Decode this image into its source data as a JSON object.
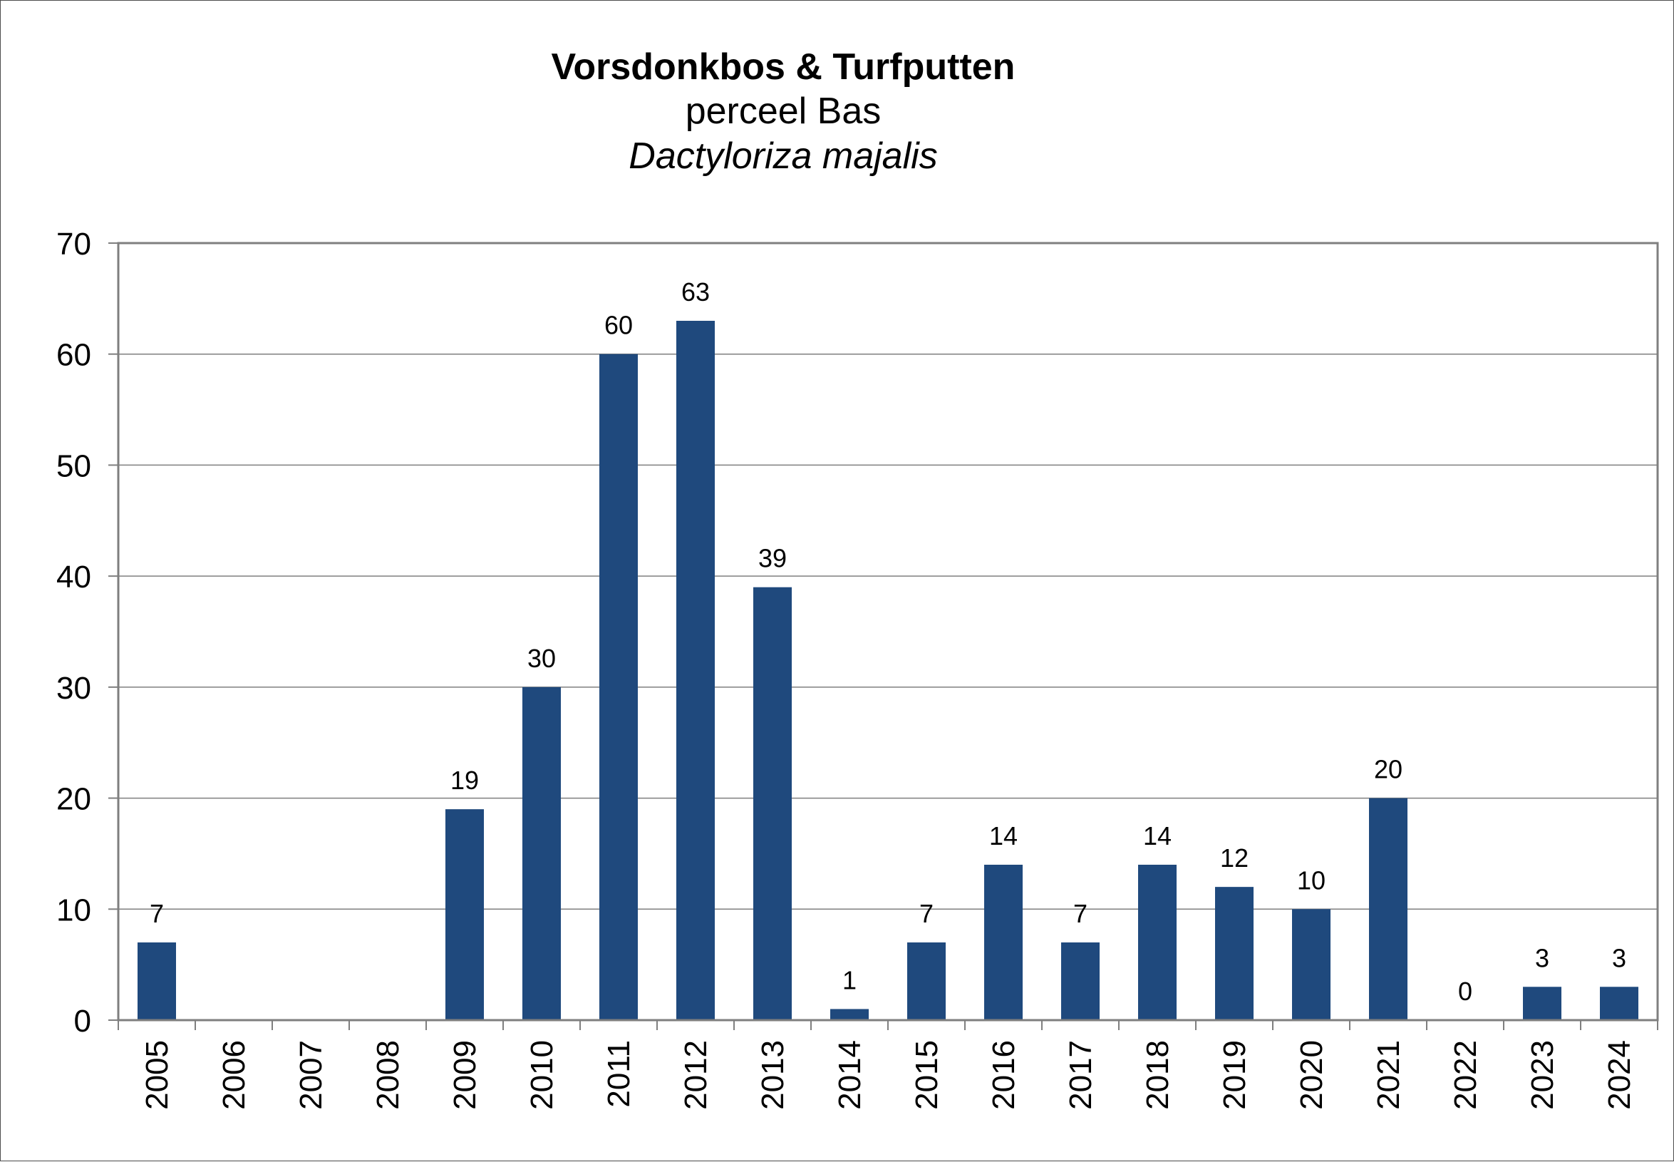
{
  "chart_data": {
    "type": "bar",
    "title": "Vorsdonkbos & Turfputten",
    "subtitle": "perceel Bas",
    "species": "Dactyloriza majalis",
    "categories": [
      "2005",
      "2006",
      "2007",
      "2008",
      "2009",
      "2010",
      "2011",
      "2012",
      "2013",
      "2014",
      "2015",
      "2016",
      "2017",
      "2018",
      "2019",
      "2020",
      "2021",
      "2022",
      "2023",
      "2024"
    ],
    "values": [
      7,
      null,
      null,
      null,
      19,
      30,
      60,
      63,
      39,
      1,
      7,
      14,
      7,
      14,
      12,
      10,
      20,
      0,
      3,
      3
    ],
    "data_labels": [
      "7",
      "",
      "",
      "",
      "19",
      "30",
      "60",
      "63",
      "39",
      "1",
      "7",
      "14",
      "7",
      "14",
      "12",
      "10",
      "20",
      "0",
      "3",
      "3"
    ],
    "xlabel": "",
    "ylabel": "",
    "ylim": [
      0,
      70
    ],
    "yticks": [
      0,
      10,
      20,
      30,
      40,
      50,
      60,
      70
    ],
    "grid": true,
    "legend": "none",
    "bar_color": "#1f497d",
    "grid_color": "#7f7f7f",
    "axis_color": "#7f7f7f"
  }
}
